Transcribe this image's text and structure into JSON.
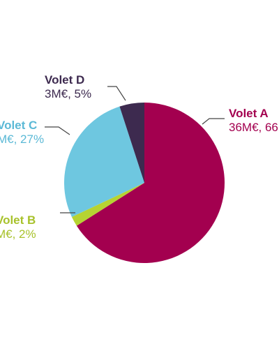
{
  "chart_data": {
    "type": "pie",
    "unit": "M€",
    "slices": [
      {
        "name": "Volet A",
        "value": 36,
        "percent": 66,
        "value_text": "36M€, 66",
        "color": "#a3004f"
      },
      {
        "name": "Volet B",
        "value": 1,
        "percent": 2,
        "value_text": "M€, 2%",
        "color": "#b6d332"
      },
      {
        "name": "Volet C",
        "value": 15,
        "percent": 27,
        "value_text": "M€, 27%",
        "color": "#6ec7e0"
      },
      {
        "name": "Volet D",
        "value": 3,
        "percent": 5,
        "value_text": "3M€, 5%",
        "color": "#3d2a4f"
      }
    ]
  }
}
